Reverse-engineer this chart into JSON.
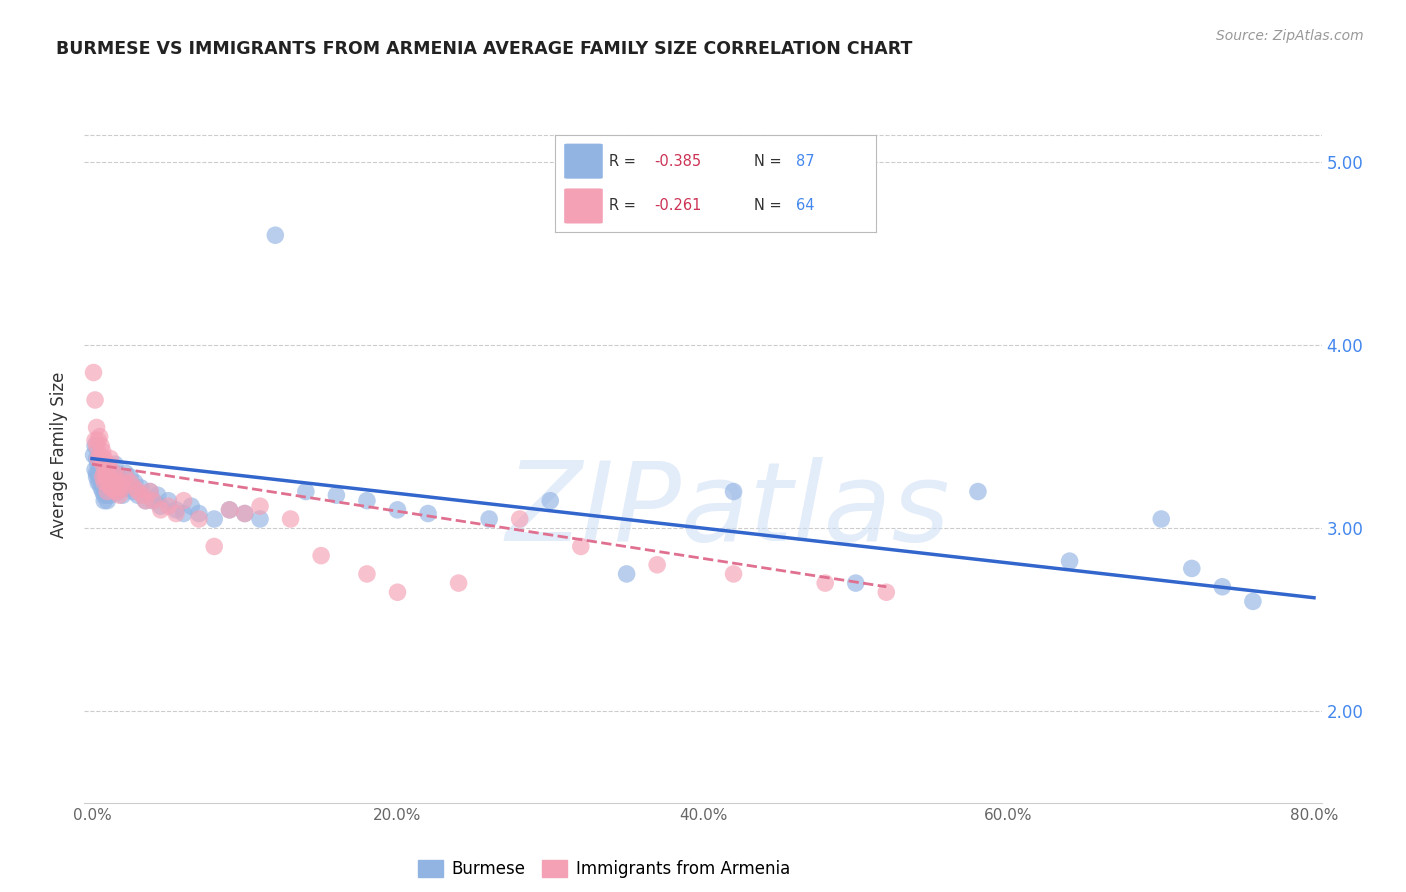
{
  "title": "BURMESE VS IMMIGRANTS FROM ARMENIA AVERAGE FAMILY SIZE CORRELATION CHART",
  "source": "Source: ZipAtlas.com",
  "ylabel": "Average Family Size",
  "watermark": "ZIPatlas",
  "burmese_R": -0.385,
  "burmese_N": 87,
  "armenia_R": -0.261,
  "armenia_N": 64,
  "burmese_color": "#92b4e3",
  "armenia_color": "#f4a0b5",
  "burmese_line_color": "#3366cc",
  "armenia_line_color": "#e07090",
  "xlim": [
    -0.005,
    0.805
  ],
  "ylim": [
    1.5,
    5.3
  ],
  "right_yticks": [
    2.0,
    3.0,
    4.0,
    5.0
  ],
  "xticks": [
    0.0,
    0.2,
    0.4,
    0.6,
    0.8
  ],
  "xticklabels": [
    "0.0%",
    "20.0%",
    "40.0%",
    "60.0%",
    "80.0%"
  ],
  "burmese_x": [
    0.001,
    0.002,
    0.002,
    0.003,
    0.003,
    0.003,
    0.004,
    0.004,
    0.004,
    0.005,
    0.005,
    0.005,
    0.006,
    0.006,
    0.006,
    0.007,
    0.007,
    0.007,
    0.007,
    0.008,
    0.008,
    0.008,
    0.008,
    0.009,
    0.009,
    0.009,
    0.01,
    0.01,
    0.01,
    0.01,
    0.011,
    0.011,
    0.012,
    0.012,
    0.012,
    0.013,
    0.013,
    0.014,
    0.014,
    0.015,
    0.015,
    0.015,
    0.016,
    0.016,
    0.017,
    0.018,
    0.019,
    0.02,
    0.021,
    0.022,
    0.023,
    0.025,
    0.027,
    0.028,
    0.03,
    0.032,
    0.035,
    0.038,
    0.04,
    0.043,
    0.045,
    0.05,
    0.055,
    0.06,
    0.065,
    0.07,
    0.08,
    0.09,
    0.1,
    0.11,
    0.12,
    0.14,
    0.16,
    0.18,
    0.2,
    0.22,
    0.26,
    0.3,
    0.35,
    0.42,
    0.5,
    0.58,
    0.64,
    0.7,
    0.72,
    0.74,
    0.76
  ],
  "burmese_y": [
    3.4,
    3.45,
    3.32,
    3.38,
    3.3,
    3.28,
    3.35,
    3.3,
    3.25,
    3.38,
    3.3,
    3.25,
    3.32,
    3.28,
    3.22,
    3.3,
    3.25,
    3.2,
    3.35,
    3.28,
    3.22,
    3.18,
    3.15,
    3.25,
    3.2,
    3.32,
    3.28,
    3.22,
    3.18,
    3.15,
    3.32,
    3.25,
    3.28,
    3.22,
    3.18,
    3.3,
    3.25,
    3.3,
    3.22,
    3.35,
    3.28,
    3.22,
    3.3,
    3.25,
    3.2,
    3.25,
    3.22,
    3.18,
    3.25,
    3.3,
    3.22,
    3.28,
    3.2,
    3.25,
    3.18,
    3.22,
    3.15,
    3.2,
    3.15,
    3.18,
    3.12,
    3.15,
    3.1,
    3.08,
    3.12,
    3.08,
    3.05,
    3.1,
    3.08,
    3.05,
    4.6,
    3.2,
    3.18,
    3.15,
    3.1,
    3.08,
    3.05,
    3.15,
    2.75,
    3.2,
    2.7,
    3.2,
    2.82,
    3.05,
    2.78,
    2.68,
    2.6
  ],
  "armenia_x": [
    0.001,
    0.002,
    0.002,
    0.003,
    0.003,
    0.004,
    0.004,
    0.005,
    0.005,
    0.006,
    0.006,
    0.007,
    0.007,
    0.007,
    0.008,
    0.008,
    0.008,
    0.009,
    0.009,
    0.01,
    0.01,
    0.01,
    0.011,
    0.011,
    0.012,
    0.012,
    0.013,
    0.013,
    0.014,
    0.015,
    0.015,
    0.016,
    0.017,
    0.018,
    0.019,
    0.02,
    0.022,
    0.025,
    0.028,
    0.03,
    0.033,
    0.035,
    0.038,
    0.04,
    0.045,
    0.05,
    0.055,
    0.06,
    0.07,
    0.08,
    0.09,
    0.1,
    0.11,
    0.13,
    0.15,
    0.18,
    0.2,
    0.24,
    0.28,
    0.32,
    0.37,
    0.42,
    0.48,
    0.52
  ],
  "armenia_y": [
    3.85,
    3.7,
    3.48,
    3.55,
    3.45,
    3.48,
    3.38,
    3.5,
    3.4,
    3.45,
    3.38,
    3.42,
    3.35,
    3.28,
    3.38,
    3.3,
    3.25,
    3.35,
    3.28,
    3.3,
    3.25,
    3.2,
    3.35,
    3.28,
    3.38,
    3.22,
    3.3,
    3.22,
    3.25,
    3.3,
    3.2,
    3.25,
    3.2,
    3.18,
    3.22,
    3.25,
    3.28,
    3.25,
    3.22,
    3.2,
    3.18,
    3.15,
    3.2,
    3.15,
    3.1,
    3.12,
    3.08,
    3.15,
    3.05,
    2.9,
    3.1,
    3.08,
    3.12,
    3.05,
    2.85,
    2.75,
    2.65,
    2.7,
    3.05,
    2.9,
    2.8,
    2.75,
    2.7,
    2.65
  ],
  "burmese_line_x": [
    0.0,
    0.8
  ],
  "burmese_line_y": [
    3.38,
    2.62
  ],
  "armenia_line_x": [
    0.0,
    0.52
  ],
  "armenia_line_y": [
    3.35,
    2.68
  ]
}
